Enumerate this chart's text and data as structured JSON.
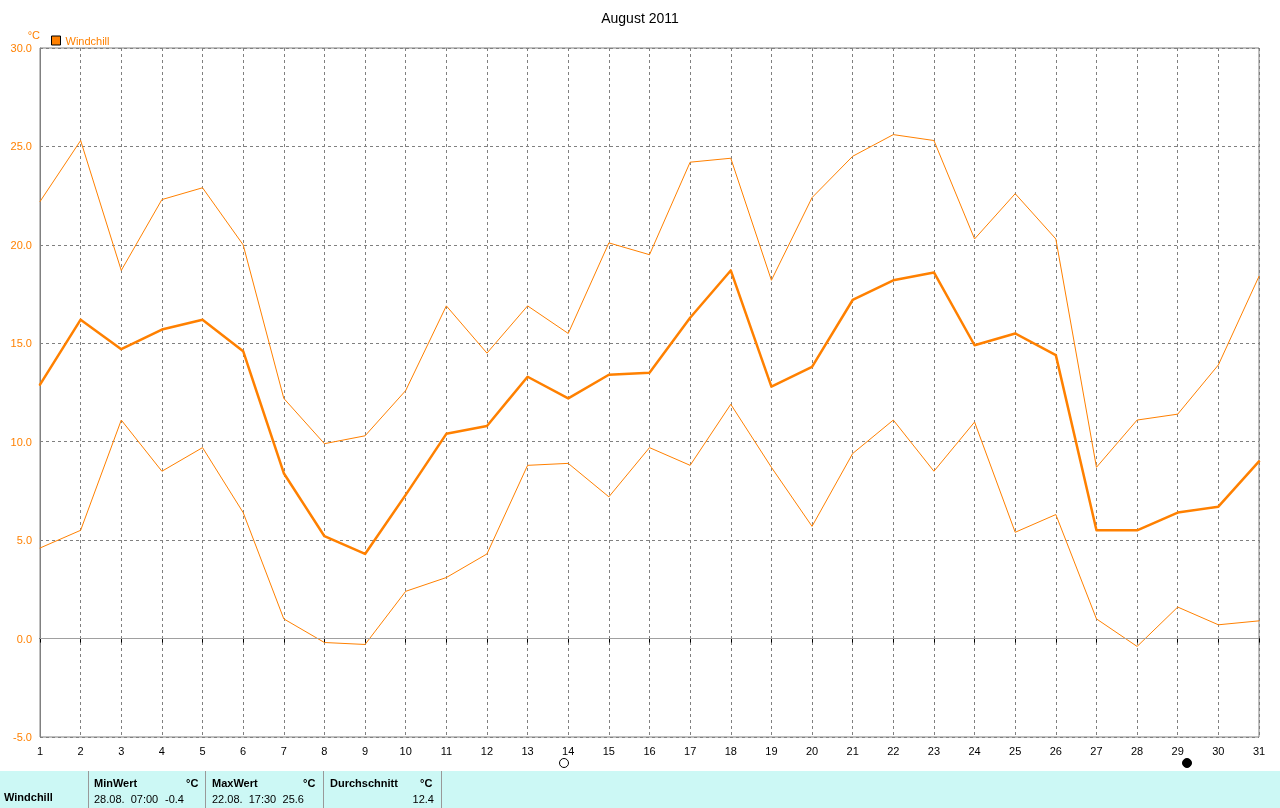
{
  "chart_data": {
    "type": "line",
    "title": "August 2011",
    "ylabel": "°C",
    "x": [
      1,
      2,
      3,
      4,
      5,
      6,
      7,
      8,
      9,
      10,
      11,
      12,
      13,
      14,
      15,
      16,
      17,
      18,
      19,
      20,
      21,
      22,
      23,
      24,
      25,
      26,
      27,
      28,
      29,
      30,
      31
    ],
    "series": [
      {
        "color": "#ff8000",
        "values": [
          22.2,
          25.3,
          18.7,
          22.3,
          22.9,
          20.0,
          12.2,
          9.9,
          10.3,
          12.6,
          16.9,
          14.5,
          16.9,
          15.5,
          20.1,
          19.5,
          24.2,
          24.4,
          18.2,
          22.4,
          24.5,
          25.6,
          25.3,
          20.3,
          22.6,
          20.3,
          8.7,
          11.1,
          11.4,
          13.9,
          18.4
        ]
      },
      {
        "name": "Windchill",
        "color": "#ff8000",
        "values": [
          12.9,
          16.2,
          14.7,
          15.7,
          16.2,
          14.6,
          8.4,
          5.2,
          4.3,
          7.3,
          10.4,
          10.8,
          13.3,
          12.2,
          13.4,
          13.5,
          16.3,
          18.7,
          12.8,
          13.8,
          17.2,
          18.2,
          18.6,
          14.9,
          15.5,
          14.4,
          5.5,
          5.5,
          6.4,
          6.7,
          9.0
        ]
      },
      {
        "color": "#ff8000",
        "values": [
          4.6,
          5.5,
          11.1,
          8.5,
          9.7,
          6.4,
          1.0,
          -0.2,
          -0.3,
          2.4,
          3.1,
          4.3,
          8.8,
          8.9,
          7.2,
          9.7,
          8.8,
          11.9,
          8.7,
          5.7,
          9.4,
          11.1,
          8.5,
          11.0,
          5.4,
          6.3,
          1.0,
          -0.4,
          1.6,
          0.7,
          0.9
        ]
      }
    ],
    "xlim": [
      1,
      31
    ],
    "xticks": [
      1,
      2,
      3,
      4,
      5,
      6,
      7,
      8,
      9,
      10,
      11,
      12,
      13,
      14,
      15,
      16,
      17,
      18,
      19,
      20,
      21,
      22,
      23,
      24,
      25,
      26,
      27,
      28,
      29,
      30,
      31
    ],
    "ylim": [
      -5,
      30
    ],
    "yticks": [
      {
        "value": -5,
        "label": "-5.0"
      },
      {
        "value": 0,
        "label": "0.0"
      },
      {
        "value": 5,
        "label": "5.0"
      },
      {
        "value": 10,
        "label": "10.0"
      },
      {
        "value": 15,
        "label": "15.0"
      },
      {
        "value": 20,
        "label": "20.0"
      },
      {
        "value": 25,
        "label": "25.0"
      },
      {
        "value": 30,
        "label": "30.0"
      }
    ],
    "ref_lines": [
      {
        "axis": "y",
        "value": 0,
        "color": "#a0a0a0",
        "line_style": "solid"
      }
    ],
    "grid": true,
    "legend": "top left",
    "marker": "none",
    "line_style": "solid",
    "annotations": [
      "Windchill",
      "MinWert",
      "°C",
      "28.08.  07:00",
      "-0.4",
      "MaxWert",
      "°C",
      "22.08.  17:30",
      "25.6",
      "Durchschnitt",
      "°C",
      "12.4"
    ]
  }
}
